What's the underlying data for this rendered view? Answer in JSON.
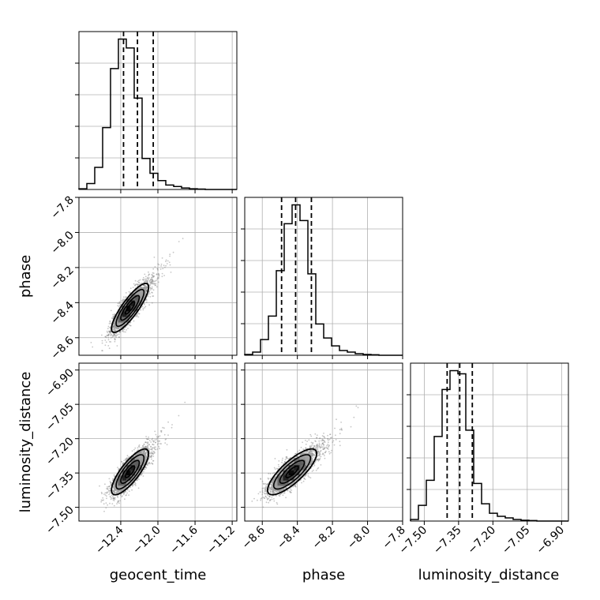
{
  "chart_data": {
    "type": "corner",
    "parameters": [
      "geocent_time",
      "phase",
      "luminosity_distance"
    ],
    "axis_labels": {
      "x": [
        "geocent_time",
        "phase",
        "luminosity_distance"
      ],
      "y": [
        "phase",
        "luminosity_distance"
      ]
    },
    "ranges": {
      "geocent_time": [
        -12.85,
        -11.15
      ],
      "phase": [
        -8.7,
        -7.8
      ],
      "luminosity_distance": [
        -7.56,
        -6.87
      ]
    },
    "ticks": {
      "geocent_time": [
        -12.4,
        -12.0,
        -11.6,
        -11.2
      ],
      "phase": [
        -8.6,
        -8.4,
        -8.2,
        -8.0,
        -7.8
      ],
      "luminosity_distance": [
        -7.5,
        -7.35,
        -7.2,
        -7.05,
        -6.9
      ]
    },
    "tick_labels": {
      "geocent_time": [
        "−12.4",
        "−12.0",
        "−11.6",
        "−11.2"
      ],
      "phase": [
        "−8.6",
        "−8.4",
        "−8.2",
        "−8.0",
        "−7.8"
      ],
      "luminosity_distance": [
        "−7.50",
        "−7.35",
        "−7.20",
        "−7.05",
        "−6.90"
      ]
    },
    "quantiles": {
      "geocent_time": [
        -12.37,
        -12.22,
        -12.05
      ],
      "phase": [
        -8.49,
        -8.41,
        -8.32
      ],
      "luminosity_distance": [
        -7.4,
        -7.345,
        -7.29
      ]
    },
    "histograms": {
      "geocent_time": {
        "bin_edges": [
          -12.85,
          -12.765,
          -12.68,
          -12.595,
          -12.51,
          -12.425,
          -12.34,
          -12.255,
          -12.17,
          -12.085,
          -12.0,
          -11.915,
          -11.83,
          -11.745,
          -11.66,
          -11.575,
          -11.49,
          -11.405,
          -11.32,
          -11.235,
          -11.15
        ],
        "counts": [
          0.5,
          4,
          15,
          42,
          82,
          102,
          96,
          62,
          21,
          11,
          6,
          3,
          2,
          1,
          0.5,
          0.3,
          0,
          0,
          0,
          0
        ]
      },
      "phase": {
        "bin_edges": [
          -8.7,
          -8.655,
          -8.61,
          -8.565,
          -8.52,
          -8.475,
          -8.43,
          -8.385,
          -8.34,
          -8.295,
          -8.25,
          -8.205,
          -8.16,
          -8.115,
          -8.07,
          -8.025,
          -7.98,
          -7.935,
          -7.89,
          -7.845,
          -7.8
        ],
        "counts": [
          0.5,
          2,
          10,
          25,
          54,
          84,
          96,
          86,
          52,
          20,
          11,
          6,
          3,
          2,
          1,
          0.5,
          0.3,
          0,
          0,
          0
        ]
      },
      "luminosity_distance": {
        "bin_edges": [
          -7.56,
          -7.5255,
          -7.491,
          -7.4565,
          -7.422,
          -7.3875,
          -7.353,
          -7.3185,
          -7.284,
          -7.2495,
          -7.215,
          -7.1805,
          -7.146,
          -7.1115,
          -7.077,
          -7.0425,
          -7.008,
          -6.9735,
          -6.939,
          -6.9045,
          -6.87
        ],
        "counts": [
          1,
          10,
          26,
          54,
          84,
          96,
          94,
          58,
          24,
          11,
          5,
          3,
          2,
          1,
          0.5,
          0.3,
          0,
          0,
          0,
          0
        ]
      }
    },
    "pairs": [
      {
        "x": "geocent_time",
        "y": "phase",
        "center": [
          -12.3,
          -8.43
        ],
        "sigma": [
          0.1,
          0.07
        ],
        "rho": 0.85
      },
      {
        "x": "geocent_time",
        "y": "luminosity_distance",
        "center": [
          -12.3,
          -7.345
        ],
        "sigma": [
          0.1,
          0.05
        ],
        "rho": 0.8
      },
      {
        "x": "phase",
        "y": "luminosity_distance",
        "center": [
          -8.43,
          -7.345
        ],
        "sigma": [
          0.07,
          0.05
        ],
        "rho": 0.8
      }
    ],
    "contour_levels": [
      0.5,
      1.0,
      1.5,
      2.0
    ],
    "grid": true,
    "colors": {
      "hist": "#000000",
      "scatter": "#808080",
      "grid": "#b0b0b0",
      "density": "#000000"
    }
  }
}
